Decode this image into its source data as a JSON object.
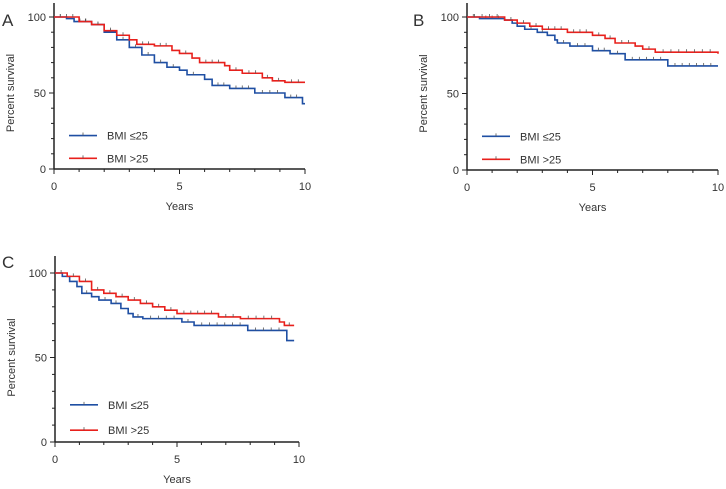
{
  "chart_data": [
    {
      "type": "line",
      "subtype": "kaplan-meier",
      "panel_label": "A",
      "xlabel": "Years",
      "ylabel": "Percent survival",
      "xlim": [
        0,
        10
      ],
      "ylim": [
        0,
        100
      ],
      "xticks": [
        "0",
        "5",
        "10"
      ],
      "yticks": [
        "0",
        "50",
        "100"
      ],
      "legend_position": "bottom-left",
      "series": [
        {
          "name": "BMI ≤25",
          "color": "#1f4fa3",
          "points": [
            [
              0,
              100
            ],
            [
              0.5,
              99
            ],
            [
              0.8,
              97
            ],
            [
              1.5,
              95
            ],
            [
              2,
              90
            ],
            [
              2.5,
              85
            ],
            [
              3,
              80
            ],
            [
              3.5,
              75
            ],
            [
              4,
              70
            ],
            [
              4.5,
              67
            ],
            [
              5,
              65
            ],
            [
              5.3,
              62
            ],
            [
              5.8,
              62
            ],
            [
              6,
              59
            ],
            [
              6.3,
              55
            ],
            [
              7,
              53
            ],
            [
              8,
              50
            ],
            [
              9.2,
              47
            ],
            [
              9.9,
              43
            ],
            [
              10,
              43
            ]
          ]
        },
        {
          "name": "BMI >25",
          "color": "#e8201c",
          "points": [
            [
              0,
              100
            ],
            [
              1,
              97
            ],
            [
              1.5,
              95
            ],
            [
              2,
              91
            ],
            [
              2.5,
              88
            ],
            [
              3,
              85
            ],
            [
              3.3,
              82
            ],
            [
              4,
              81
            ],
            [
              4.7,
              78
            ],
            [
              5,
              76
            ],
            [
              5.5,
              73
            ],
            [
              5.8,
              70
            ],
            [
              6.8,
              68
            ],
            [
              7,
              65
            ],
            [
              7.5,
              63
            ],
            [
              8.3,
              60
            ],
            [
              8.7,
              58
            ],
            [
              9.2,
              57
            ],
            [
              10,
              57
            ]
          ]
        }
      ]
    },
    {
      "type": "line",
      "subtype": "kaplan-meier",
      "panel_label": "B",
      "xlabel": "Years",
      "ylabel": "Percent survival",
      "xlim": [
        0,
        10
      ],
      "ylim": [
        0,
        100
      ],
      "xticks": [
        "0",
        "5",
        "10"
      ],
      "yticks": [
        "0",
        "50",
        "100"
      ],
      "legend_position": "bottom-left",
      "series": [
        {
          "name": "BMI ≤25",
          "color": "#1f4fa3",
          "points": [
            [
              0,
              100
            ],
            [
              0.5,
              99
            ],
            [
              1.5,
              98
            ],
            [
              1.8,
              96
            ],
            [
              2,
              94
            ],
            [
              2.3,
              92
            ],
            [
              2.8,
              90
            ],
            [
              3.2,
              88
            ],
            [
              3.5,
              85
            ],
            [
              3.6,
              83
            ],
            [
              4.1,
              81
            ],
            [
              5,
              78
            ],
            [
              5.7,
              76
            ],
            [
              6.3,
              72
            ],
            [
              8,
              68
            ],
            [
              10,
              68
            ]
          ]
        },
        {
          "name": "BMI >25",
          "color": "#e8201c",
          "points": [
            [
              0,
              100
            ],
            [
              1.5,
              98
            ],
            [
              2,
              96
            ],
            [
              2.5,
              94
            ],
            [
              3,
              92
            ],
            [
              4,
              90
            ],
            [
              5,
              88
            ],
            [
              5.5,
              86
            ],
            [
              5.9,
              83
            ],
            [
              6.7,
              81
            ],
            [
              7,
              79
            ],
            [
              7.5,
              77
            ],
            [
              10,
              76
            ]
          ]
        }
      ]
    },
    {
      "type": "line",
      "subtype": "kaplan-meier",
      "panel_label": "C",
      "xlabel": "Years",
      "ylabel": "Percent survival",
      "xlim": [
        0,
        10
      ],
      "ylim": [
        0,
        100
      ],
      "xticks": [
        "0",
        "5",
        "10"
      ],
      "yticks": [
        "0",
        "50",
        "100"
      ],
      "legend_position": "bottom-left",
      "series": [
        {
          "name": "BMI ≤25",
          "color": "#1f4fa3",
          "points": [
            [
              0,
              100
            ],
            [
              0.3,
              98
            ],
            [
              0.6,
              95
            ],
            [
              0.9,
              92
            ],
            [
              1.1,
              88
            ],
            [
              1.5,
              86
            ],
            [
              1.8,
              84
            ],
            [
              2.3,
              82
            ],
            [
              2.7,
              79
            ],
            [
              3,
              76
            ],
            [
              3.2,
              74
            ],
            [
              3.6,
              73
            ],
            [
              5.2,
              71
            ],
            [
              5.7,
              69
            ],
            [
              7.9,
              66
            ],
            [
              9.5,
              60
            ],
            [
              9.8,
              60
            ]
          ]
        },
        {
          "name": "BMI >25",
          "color": "#e8201c",
          "points": [
            [
              0,
              100
            ],
            [
              0.5,
              98
            ],
            [
              1,
              95
            ],
            [
              1.5,
              90
            ],
            [
              2,
              88
            ],
            [
              2.5,
              86
            ],
            [
              3,
              84
            ],
            [
              3.5,
              82
            ],
            [
              4,
              80
            ],
            [
              4.5,
              78
            ],
            [
              5,
              76
            ],
            [
              6.7,
              74
            ],
            [
              7.6,
              73
            ],
            [
              9.2,
              71
            ],
            [
              9.4,
              69
            ],
            [
              9.8,
              69
            ]
          ]
        }
      ]
    }
  ]
}
